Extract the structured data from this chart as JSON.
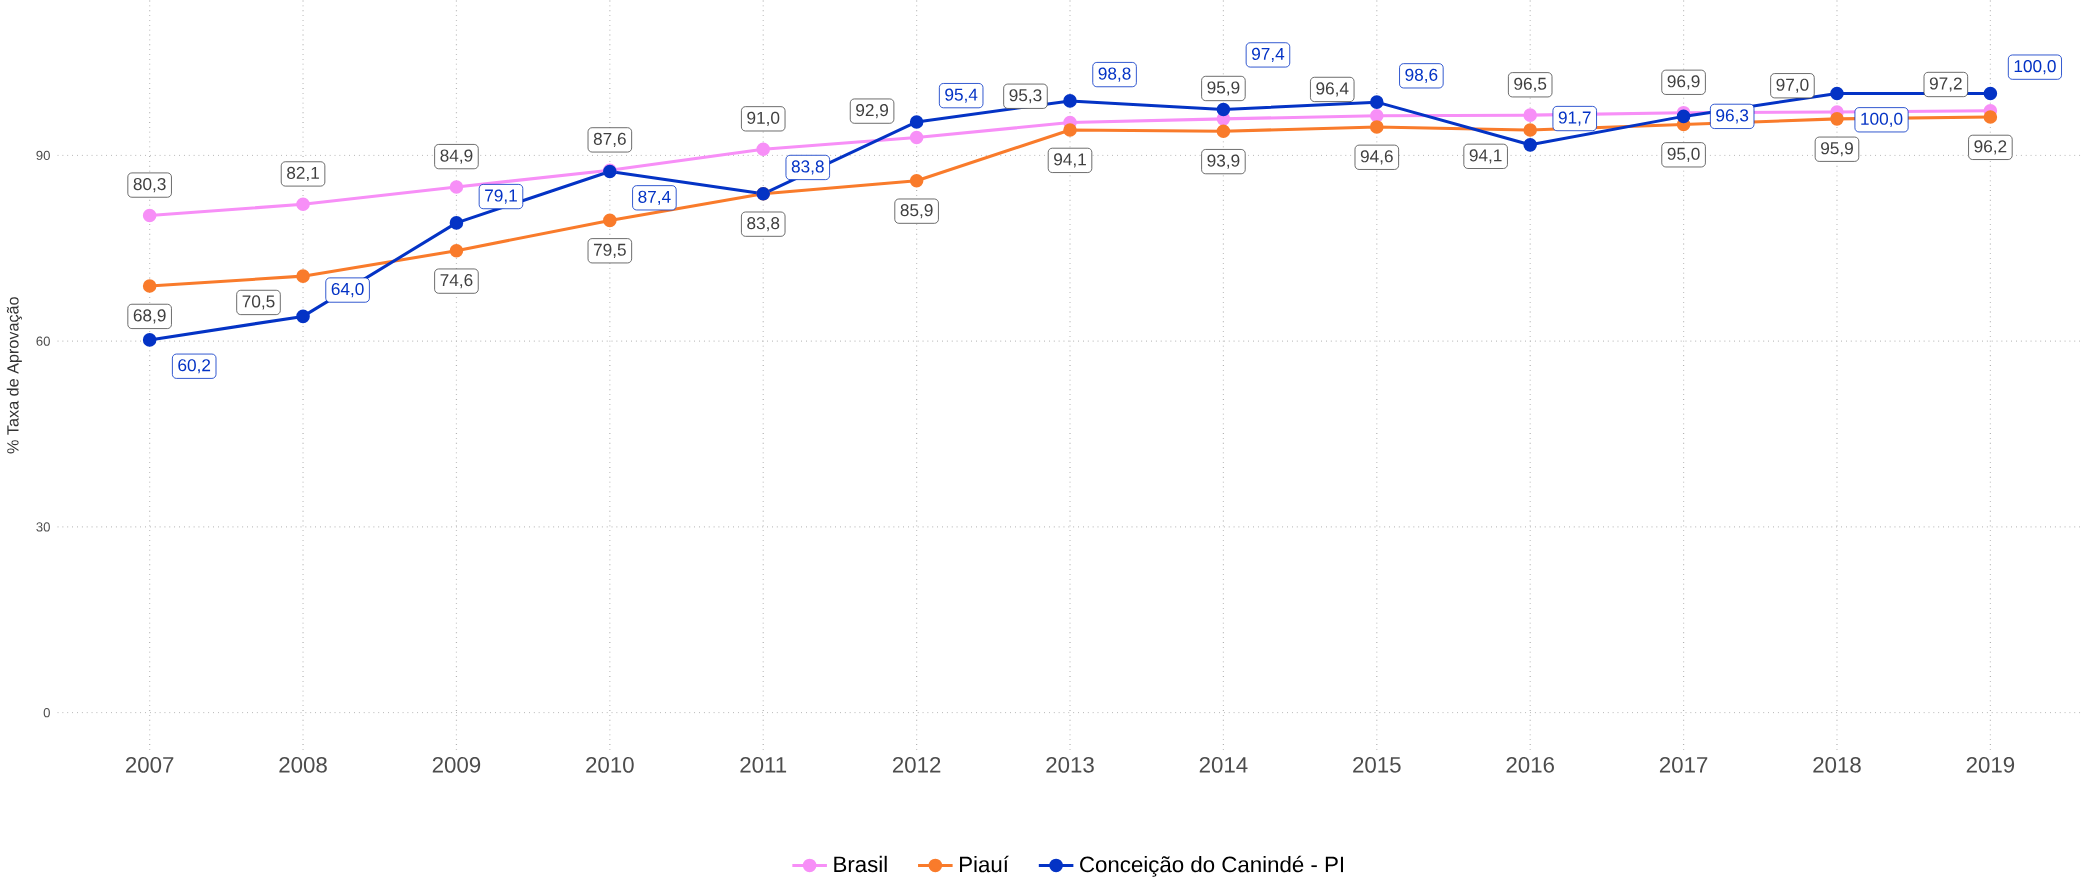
{
  "chart_data": {
    "type": "line",
    "ylabel": "% Taxa de Aprovação",
    "x": [
      2007,
      2008,
      2009,
      2010,
      2011,
      2012,
      2013,
      2014,
      2015,
      2016,
      2017,
      2018,
      2019
    ],
    "xlim": [
      2006.4,
      2019.6
    ],
    "xticks": [
      2007,
      2008,
      2009,
      2010,
      2011,
      2012,
      2013,
      2014,
      2015,
      2016,
      2017,
      2018,
      2019
    ],
    "ylim": [
      -6,
      115
    ],
    "yticks": [
      0,
      30,
      60,
      90
    ],
    "grid": true,
    "legend": "bottom",
    "marker": "circle",
    "line_style": "solid",
    "series": [
      {
        "name": "Brasil",
        "color": "#f78ff7",
        "values": [
          80.3,
          82.1,
          84.9,
          87.6,
          91.0,
          92.9,
          95.3,
          95.9,
          96.4,
          96.5,
          96.9,
          97.0,
          97.2
        ],
        "value_labels": [
          "80,3",
          "82,1",
          "84,9",
          "87,6",
          "91,0",
          "92,9",
          "95,3",
          "95,9",
          "96,4",
          "96,5",
          "96,9",
          "97,0",
          "97,2"
        ]
      },
      {
        "name": "Piauí",
        "color": "#f97b2b",
        "values": [
          68.9,
          70.5,
          74.6,
          79.5,
          83.8,
          85.9,
          94.1,
          93.9,
          94.6,
          94.1,
          95.0,
          95.9,
          96.2
        ],
        "value_labels": [
          "68,9",
          "70,5",
          "74,6",
          "79,5",
          "83,8",
          "85,9",
          "94,1",
          "93,9",
          "94,6",
          "94,1",
          "95,0",
          "95,9",
          "96,2"
        ]
      },
      {
        "name": "Conceição do Canindé - PI",
        "color": "#0433c5",
        "values": [
          60.2,
          64.0,
          79.1,
          87.4,
          83.8,
          95.4,
          98.8,
          97.4,
          98.6,
          91.7,
          96.3,
          100.0,
          100.0
        ],
        "value_labels": [
          "60,2",
          "64,0",
          "79,1",
          "87,4",
          "83,8",
          "95,4",
          "98,8",
          "97,4",
          "98,6",
          "91,7",
          "96,3",
          "100,0",
          "100,0"
        ]
      }
    ]
  }
}
